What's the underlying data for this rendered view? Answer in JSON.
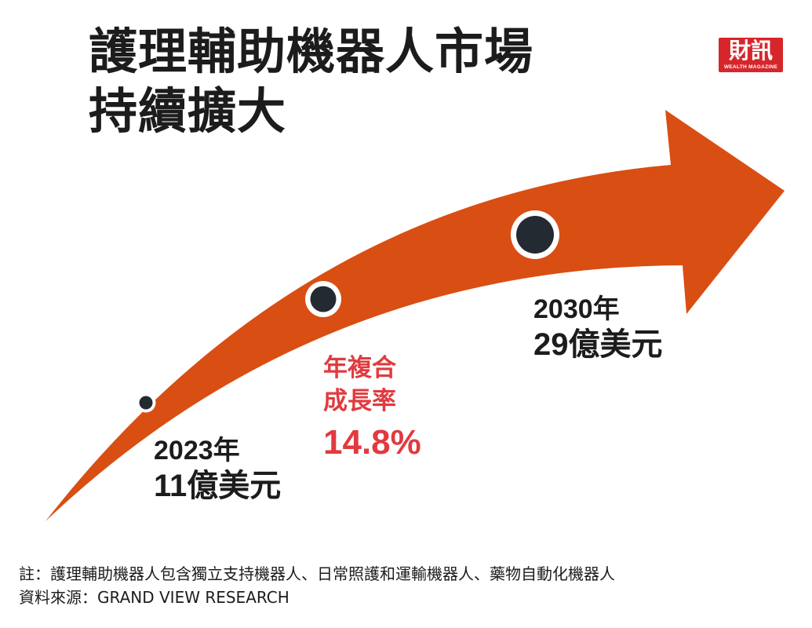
{
  "title": {
    "line1": "護理輔助機器人市場",
    "line2": "持續擴大"
  },
  "logo": {
    "main": "財訊",
    "sub": "WEALTH MAGAZINE"
  },
  "points": [
    {
      "year": "2023年",
      "amount": "11億美元"
    },
    {
      "year": "2030年",
      "amount": "29億美元"
    }
  ],
  "cagr": {
    "label_line1": "年複合",
    "label_line2": "成長率",
    "value": "14.8%"
  },
  "notes": {
    "line1": "註：護理輔助機器人包含獨立支持機器人、日常照護和運輸機器人、藥物自動化機器人",
    "line2": "資料來源：GRAND VIEW RESEARCH"
  },
  "colors": {
    "arrow": "#d94e13",
    "accent_text": "#e13a3f",
    "dot_fill": "#232a31",
    "logo_bg": "#d7262b"
  }
}
